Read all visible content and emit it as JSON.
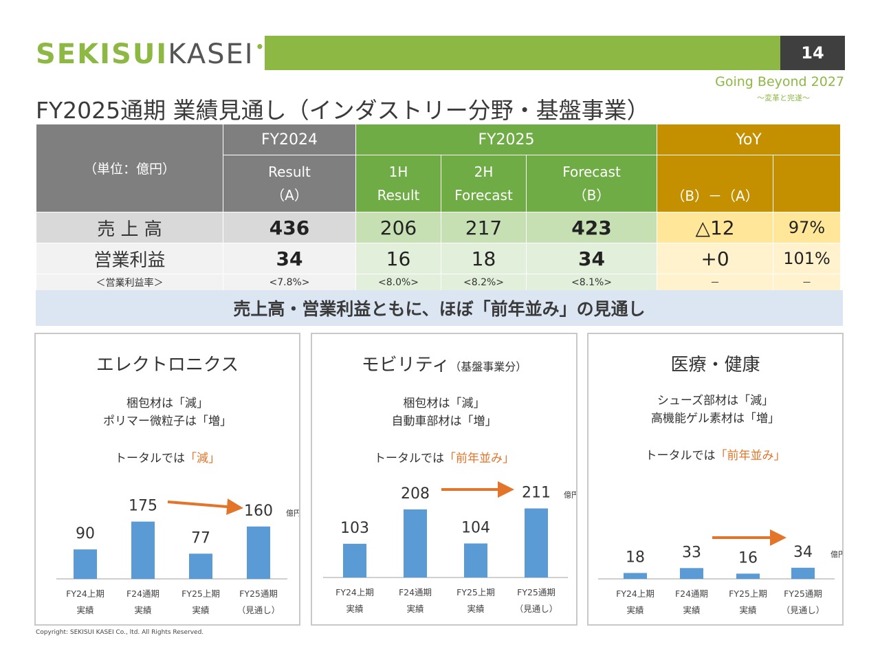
{
  "header": {
    "logo_bold": "SEKISUI",
    "logo_thin": "KASEI",
    "logo_dot": "•",
    "page_number": "14",
    "tagline": "Going Beyond 2027",
    "tagline_sub": "～変革と完遂～",
    "title": "FY2025通期 業績見通し（インダストリー分野・基盤事業）"
  },
  "table": {
    "unit": "（単位：億円）",
    "fy2024": "FY2024",
    "fy2024_sub1": "Result",
    "fy2024_sub2": "（A）",
    "fy2025": "FY2025",
    "h1_a": "1H",
    "h1_b": "Result",
    "h2_a": "2H",
    "h2_b": "Forecast",
    "fc_a": "Forecast",
    "fc_b": "（B）",
    "yoy": "YoY",
    "diff": "（B）－（A）",
    "rows": {
      "sales_label": "売 上 高",
      "sales_fy24": "436",
      "sales_1h": "206",
      "sales_2h": "217",
      "sales_fc": "423",
      "sales_diff": "△12",
      "sales_pct": "97%",
      "op_label": "営業利益",
      "op_fy24": "34",
      "op_1h": "16",
      "op_2h": "18",
      "op_fc": "34",
      "op_diff": "+0",
      "op_pct": "101%",
      "margin_label": "＜営業利益率＞",
      "margin_fy24": "<7.8%>",
      "margin_1h": "<8.0%>",
      "margin_2h": "<8.2%>",
      "margin_fc": "<8.1%>",
      "margin_diff": "－",
      "margin_pct": "－"
    }
  },
  "banner": "売上高・営業利益ともに、ほぼ「前年並み」の見通し",
  "panels": [
    {
      "title": "エレクトロニクス",
      "title_small": "",
      "line1": "梱包材は「減」",
      "line2": "ポリマー微粒子は「増」",
      "total_prefix": "トータルでは",
      "total_value": "「減」"
    },
    {
      "title": "モビリティ",
      "title_small": "（基盤事業分）",
      "line1": "梱包材は「減」",
      "line2": "自動車部材は「増」",
      "total_prefix": "トータルでは",
      "total_value": "「前年並み」"
    },
    {
      "title": "医療・健康",
      "title_small": "",
      "line1": "シューズ部材は「減」",
      "line2": "高機能ゲル素材は「増」",
      "total_prefix": "トータルでは",
      "total_value": "「前年並み」"
    }
  ],
  "chart_data": [
    {
      "type": "bar",
      "title": "エレクトロニクス",
      "categories": [
        "FY24上期",
        "F24通期",
        "FY25上期",
        "FY25通期"
      ],
      "categories_sub": [
        "実績",
        "実績",
        "実績",
        "（見通し）"
      ],
      "values": [
        90,
        175,
        77,
        160
      ],
      "unit": "億円",
      "ylim": [
        0,
        210
      ]
    },
    {
      "type": "bar",
      "title": "モビリティ",
      "categories": [
        "FY24上期",
        "F24通期",
        "FY25上期",
        "FY25通期"
      ],
      "categories_sub": [
        "実績",
        "実績",
        "実績",
        "（見通し）"
      ],
      "values": [
        103,
        208,
        104,
        211
      ],
      "unit": "億円",
      "ylim": [
        0,
        210
      ]
    },
    {
      "type": "bar",
      "title": "医療・健康",
      "categories": [
        "FY24上期",
        "F24通期",
        "FY25上期",
        "FY25通期"
      ],
      "categories_sub": [
        "実績",
        "実績",
        "実績",
        "（見通し）"
      ],
      "values": [
        18,
        33,
        16,
        34
      ],
      "unit": "億円",
      "ylim": [
        0,
        210
      ]
    }
  ],
  "colors": {
    "bar": "#5b9bd5",
    "arrow": "#e3752b",
    "brand_green": "#8db843"
  },
  "footer": "Copyright: SEKISUI KASEI Co., ltd. All Rights Reserved."
}
